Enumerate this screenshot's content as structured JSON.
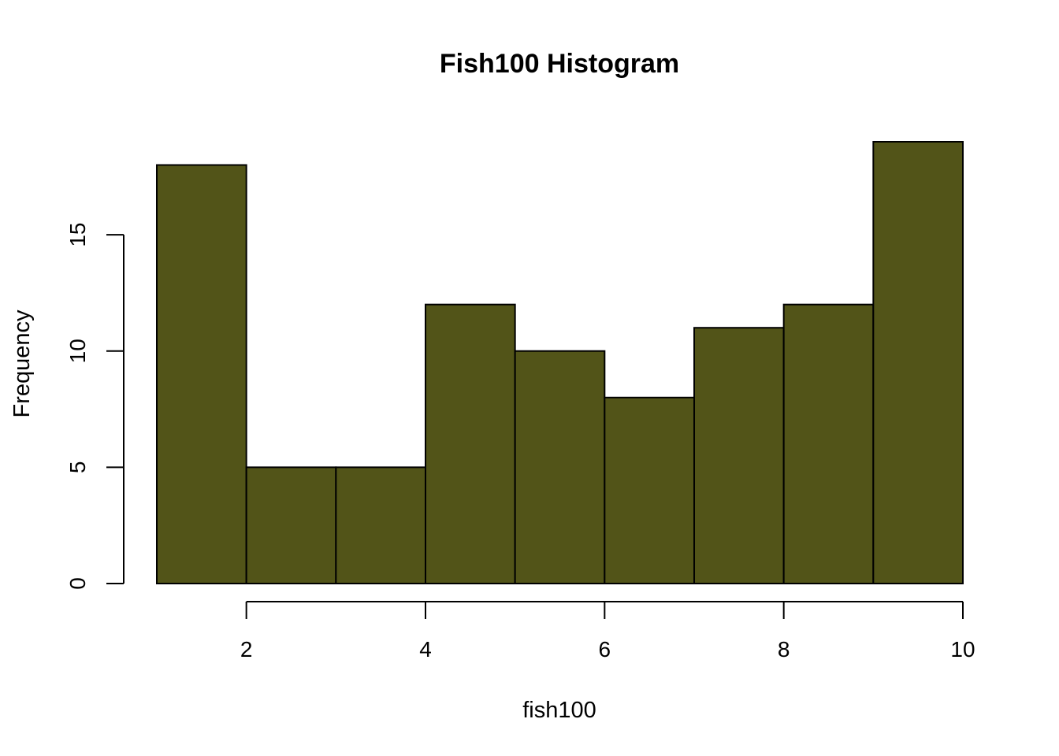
{
  "chart_data": {
    "type": "bar",
    "subtype": "histogram",
    "title": "Fish100 Histogram",
    "xlabel": "fish100",
    "ylabel": "Frequency",
    "bins": [
      [
        1,
        2
      ],
      [
        2,
        3
      ],
      [
        3,
        4
      ],
      [
        4,
        5
      ],
      [
        5,
        6
      ],
      [
        6,
        7
      ],
      [
        7,
        8
      ],
      [
        8,
        9
      ],
      [
        9,
        10
      ]
    ],
    "values": [
      18,
      5,
      5,
      12,
      10,
      8,
      11,
      12,
      19
    ],
    "x_ticks": [
      2,
      4,
      6,
      8,
      10
    ],
    "y_ticks": [
      0,
      5,
      10,
      15
    ],
    "xlim": [
      1,
      10
    ],
    "ylim": [
      0,
      19
    ],
    "bar_color": "#525418",
    "grid": false
  }
}
